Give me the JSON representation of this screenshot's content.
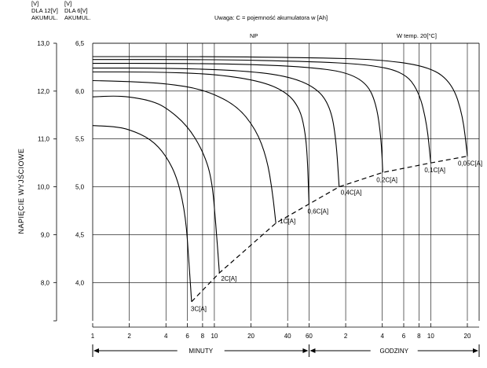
{
  "header": {
    "left_col1": [
      "[V]",
      "DLA 12[V]",
      "AKUMUL."
    ],
    "left_col2": [
      "[V]",
      "DLA 6[V]",
      "AKUMUL."
    ],
    "note": "Uwaga: C = pojemność akumulatora w [Ah]",
    "np": "NP",
    "temp": "W temp. 20[°C]"
  },
  "chart_data": {
    "type": "line",
    "ylabel": "NAPIĘCIE WYJŚCIOWE",
    "y12_ticks": [
      "13,0",
      "12,0",
      "11,0",
      "10,0",
      "9,0",
      "8,0"
    ],
    "y12_values": [
      13,
      12,
      11,
      10,
      9,
      8
    ],
    "y6_ticks": [
      "6,5",
      "6,0",
      "5,5",
      "5,0",
      "4,5",
      "4,0"
    ],
    "y6_values": [
      6.5,
      6.0,
      5.5,
      5.0,
      4.5,
      4.0
    ],
    "ylim_6v": [
      3.6,
      6.5
    ],
    "x_scale": "log",
    "x_unit_minutes": {
      "label": "MINUTY",
      "ticks": [
        "1",
        "2",
        "4",
        "6",
        "8",
        "10",
        "20",
        "40",
        "60"
      ]
    },
    "x_unit_hours": {
      "label": "GODZINY",
      "ticks": [
        "2",
        "4",
        "6",
        "8",
        "10",
        "20"
      ]
    },
    "xlim_minutes": [
      1,
      1500
    ],
    "grid": true,
    "series": [
      {
        "name": "3C[A]",
        "x_min": [
          1,
          1.5,
          2,
          3,
          4,
          5,
          5.8,
          6.2,
          6.5
        ],
        "y_6v": [
          5.64,
          5.63,
          5.6,
          5.5,
          5.33,
          5.08,
          4.7,
          4.2,
          3.8
        ]
      },
      {
        "name": "2C[A]",
        "x_min": [
          1,
          1.5,
          2,
          3,
          4,
          6,
          8,
          9.5,
          10.3,
          11
        ],
        "y_6v": [
          5.94,
          5.95,
          5.94,
          5.9,
          5.83,
          5.64,
          5.38,
          5.1,
          4.6,
          4.1
        ]
      },
      {
        "name": "1C[A]",
        "x_min": [
          1,
          2,
          4,
          8,
          15,
          22,
          27,
          30,
          32
        ],
        "y_6v": [
          6.11,
          6.1,
          6.08,
          6.02,
          5.86,
          5.6,
          5.3,
          4.95,
          4.62
        ]
      },
      {
        "name": "0,6C[A]",
        "x_min": [
          1,
          3,
          10,
          25,
          40,
          50,
          55,
          58,
          60
        ],
        "y_6v": [
          6.2,
          6.2,
          6.18,
          6.1,
          5.98,
          5.82,
          5.62,
          5.35,
          4.82
        ]
      },
      {
        "name": "0,4C[A]",
        "x_min": [
          1,
          4,
          15,
          40,
          70,
          90,
          100,
          106
        ],
        "y_6v": [
          6.24,
          6.24,
          6.22,
          6.16,
          6.03,
          5.83,
          5.5,
          5.0
        ]
      },
      {
        "name": "0,2C[A]",
        "x_min": [
          1,
          5,
          20,
          60,
          120,
          180,
          215,
          235,
          242
        ],
        "y_6v": [
          6.29,
          6.29,
          6.28,
          6.25,
          6.2,
          6.08,
          5.86,
          5.5,
          5.15
        ]
      },
      {
        "name": "0,1C[A]",
        "x_min": [
          1,
          10,
          60,
          180,
          360,
          480,
          560,
          600
        ],
        "y_6v": [
          6.33,
          6.33,
          6.31,
          6.28,
          6.2,
          6.0,
          5.65,
          5.25
        ]
      },
      {
        "name": "0,05C[A]",
        "x_min": [
          1,
          10,
          60,
          240,
          600,
          900,
          1100,
          1200
        ],
        "y_6v": [
          6.36,
          6.36,
          6.35,
          6.33,
          6.25,
          6.08,
          5.75,
          5.32
        ]
      }
    ],
    "cutoff_line": {
      "style": "dashed",
      "x_min": [
        6.5,
        11,
        32,
        60,
        106,
        242,
        600,
        1200
      ],
      "y_6v": [
        3.8,
        4.1,
        4.62,
        4.82,
        5.0,
        5.15,
        5.25,
        5.32
      ]
    }
  }
}
